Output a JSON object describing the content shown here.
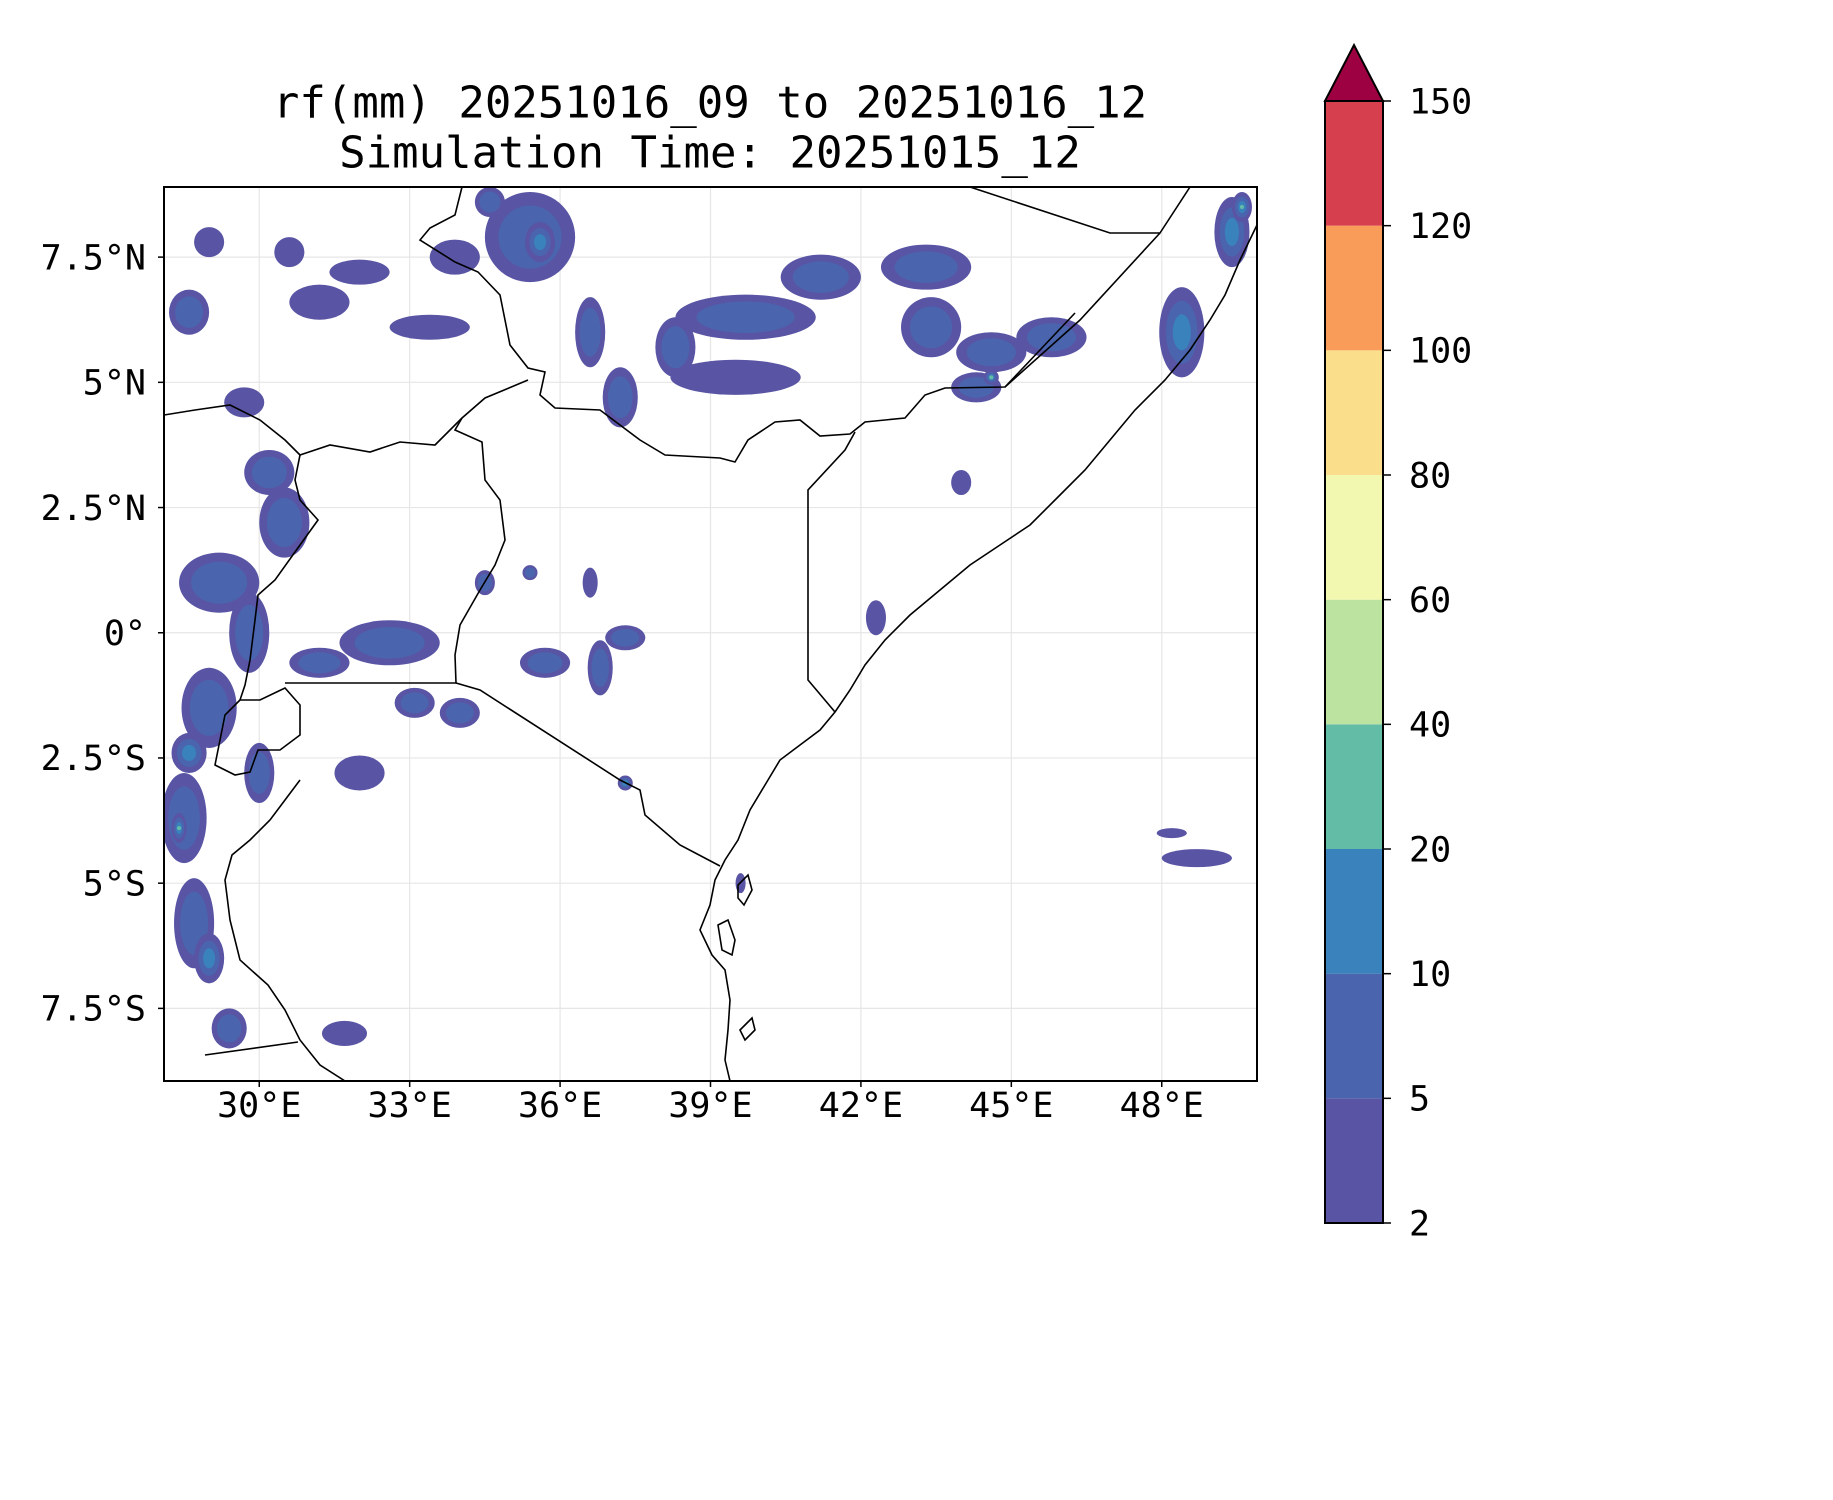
{
  "title": {
    "line1": "rf(mm) 20251016_09 to 20251016_12",
    "line2": "Simulation Time: 20251015_12"
  },
  "chart_data": {
    "type": "map",
    "variable": "rf(mm)",
    "period_start": "20251016_09",
    "period_end": "20251016_12",
    "simulation_time": "20251015_12",
    "extent": {
      "lon_min": 28.1,
      "lon_max": 49.9,
      "lat_min": -8.95,
      "lat_max": 8.9
    },
    "lon_ticks": [
      30,
      33,
      36,
      39,
      42,
      45,
      48
    ],
    "lon_tick_labels": [
      "30°E",
      "33°E",
      "36°E",
      "39°E",
      "42°E",
      "45°E",
      "48°E"
    ],
    "lat_ticks": [
      7.5,
      5,
      2.5,
      0,
      -2.5,
      -5,
      -7.5
    ],
    "lat_tick_labels": [
      "7.5°N",
      "5°N",
      "2.5°N",
      "0°",
      "2.5°S",
      "5°S",
      "7.5°S"
    ],
    "colorbar": {
      "levels": [
        2,
        5,
        10,
        20,
        40,
        60,
        80,
        100,
        120,
        150
      ],
      "labels": [
        "2",
        "5",
        "10",
        "20",
        "40",
        "60",
        "80",
        "100",
        "120",
        "150"
      ],
      "colors": [
        "#5954a4",
        "#4a65ae",
        "#3a82bc",
        "#63bca6",
        "#bce3a0",
        "#f2f8af",
        "#fbde8c",
        "#f99b59",
        "#d6404e"
      ],
      "extend_max_color": "#9e0142",
      "extend": "max"
    },
    "rain_cells": [
      {
        "lon": 28.6,
        "lat": 6.4,
        "rx": 0.4,
        "ry": 0.45,
        "level": 1
      },
      {
        "lon": 29.0,
        "lat": 7.8,
        "rx": 0.3,
        "ry": 0.3,
        "level": 0
      },
      {
        "lon": 29.7,
        "lat": 4.6,
        "rx": 0.4,
        "ry": 0.3,
        "level": 0
      },
      {
        "lon": 30.2,
        "lat": 3.2,
        "rx": 0.5,
        "ry": 0.45,
        "level": 1
      },
      {
        "lon": 30.5,
        "lat": 2.2,
        "rx": 0.5,
        "ry": 0.7,
        "level": 1
      },
      {
        "lon": 29.2,
        "lat": 1.0,
        "rx": 0.8,
        "ry": 0.6,
        "level": 1
      },
      {
        "lon": 29.8,
        "lat": 0.0,
        "rx": 0.4,
        "ry": 0.8,
        "level": 1
      },
      {
        "lon": 29.0,
        "lat": -1.5,
        "rx": 0.55,
        "ry": 0.8,
        "level": 1
      },
      {
        "lon": 28.6,
        "lat": -2.4,
        "rx": 0.35,
        "ry": 0.4,
        "level": 2
      },
      {
        "lon": 28.5,
        "lat": -3.7,
        "rx": 0.45,
        "ry": 0.9,
        "level": 1
      },
      {
        "lon": 28.4,
        "lat": -3.9,
        "rx": 0.15,
        "ry": 0.3,
        "level": 3
      },
      {
        "lon": 28.7,
        "lat": -5.8,
        "rx": 0.4,
        "ry": 0.9,
        "level": 1
      },
      {
        "lon": 29.0,
        "lat": -6.5,
        "rx": 0.3,
        "ry": 0.5,
        "level": 2
      },
      {
        "lon": 29.4,
        "lat": -7.9,
        "rx": 0.35,
        "ry": 0.4,
        "level": 1
      },
      {
        "lon": 30.0,
        "lat": -2.8,
        "rx": 0.3,
        "ry": 0.6,
        "level": 1
      },
      {
        "lon": 31.7,
        "lat": -8.0,
        "rx": 0.45,
        "ry": 0.25,
        "level": 0
      },
      {
        "lon": 31.2,
        "lat": 6.6,
        "rx": 0.6,
        "ry": 0.35,
        "level": 0
      },
      {
        "lon": 30.6,
        "lat": 7.6,
        "rx": 0.3,
        "ry": 0.3,
        "level": 0
      },
      {
        "lon": 32.0,
        "lat": 7.2,
        "rx": 0.6,
        "ry": 0.25,
        "level": 0
      },
      {
        "lon": 33.9,
        "lat": 7.5,
        "rx": 0.5,
        "ry": 0.35,
        "level": 0
      },
      {
        "lon": 33.4,
        "lat": 6.1,
        "rx": 0.8,
        "ry": 0.25,
        "level": 0
      },
      {
        "lon": 35.4,
        "lat": 7.9,
        "rx": 0.9,
        "ry": 0.9,
        "level": 1
      },
      {
        "lon": 35.6,
        "lat": 7.8,
        "rx": 0.3,
        "ry": 0.4,
        "level": 2
      },
      {
        "lon": 34.6,
        "lat": 8.6,
        "rx": 0.3,
        "ry": 0.3,
        "level": 1
      },
      {
        "lon": 36.6,
        "lat": 6.0,
        "rx": 0.3,
        "ry": 0.7,
        "level": 1
      },
      {
        "lon": 37.2,
        "lat": 4.7,
        "rx": 0.35,
        "ry": 0.6,
        "level": 1
      },
      {
        "lon": 38.3,
        "lat": 5.7,
        "rx": 0.4,
        "ry": 0.6,
        "level": 1
      },
      {
        "lon": 39.7,
        "lat": 6.3,
        "rx": 1.4,
        "ry": 0.45,
        "level": 1
      },
      {
        "lon": 41.2,
        "lat": 7.1,
        "rx": 0.8,
        "ry": 0.45,
        "level": 1
      },
      {
        "lon": 39.5,
        "lat": 5.1,
        "rx": 1.3,
        "ry": 0.35,
        "level": 0
      },
      {
        "lon": 43.3,
        "lat": 7.3,
        "rx": 0.9,
        "ry": 0.45,
        "level": 1
      },
      {
        "lon": 43.4,
        "lat": 6.1,
        "rx": 0.6,
        "ry": 0.6,
        "level": 1
      },
      {
        "lon": 44.6,
        "lat": 5.6,
        "rx": 0.7,
        "ry": 0.4,
        "level": 1
      },
      {
        "lon": 44.3,
        "lat": 4.9,
        "rx": 0.5,
        "ry": 0.3,
        "level": 1
      },
      {
        "lon": 44.6,
        "lat": 5.1,
        "rx": 0.15,
        "ry": 0.15,
        "level": 3
      },
      {
        "lon": 45.8,
        "lat": 5.9,
        "rx": 0.7,
        "ry": 0.4,
        "level": 1
      },
      {
        "lon": 48.4,
        "lat": 6.0,
        "rx": 0.45,
        "ry": 0.9,
        "level": 2
      },
      {
        "lon": 49.4,
        "lat": 8.0,
        "rx": 0.35,
        "ry": 0.7,
        "level": 2
      },
      {
        "lon": 49.6,
        "lat": 8.5,
        "rx": 0.2,
        "ry": 0.3,
        "level": 3
      },
      {
        "lon": 44.0,
        "lat": 3.0,
        "rx": 0.2,
        "ry": 0.25,
        "level": 0
      },
      {
        "lon": 42.3,
        "lat": 0.3,
        "rx": 0.2,
        "ry": 0.35,
        "level": 0
      },
      {
        "lon": 34.5,
        "lat": 1.0,
        "rx": 0.2,
        "ry": 0.25,
        "level": 1
      },
      {
        "lon": 35.4,
        "lat": 1.2,
        "rx": 0.15,
        "ry": 0.15,
        "level": 1
      },
      {
        "lon": 36.6,
        "lat": 1.0,
        "rx": 0.15,
        "ry": 0.3,
        "level": 0
      },
      {
        "lon": 35.7,
        "lat": -0.6,
        "rx": 0.5,
        "ry": 0.3,
        "level": 1
      },
      {
        "lon": 36.8,
        "lat": -0.7,
        "rx": 0.25,
        "ry": 0.55,
        "level": 1
      },
      {
        "lon": 37.3,
        "lat": -0.1,
        "rx": 0.4,
        "ry": 0.25,
        "level": 1
      },
      {
        "lon": 32.6,
        "lat": -0.2,
        "rx": 1.0,
        "ry": 0.45,
        "level": 1
      },
      {
        "lon": 33.1,
        "lat": -1.4,
        "rx": 0.4,
        "ry": 0.3,
        "level": 1
      },
      {
        "lon": 34.0,
        "lat": -1.6,
        "rx": 0.4,
        "ry": 0.3,
        "level": 1
      },
      {
        "lon": 31.2,
        "lat": -0.6,
        "rx": 0.6,
        "ry": 0.3,
        "level": 1
      },
      {
        "lon": 32.0,
        "lat": -2.8,
        "rx": 0.5,
        "ry": 0.35,
        "level": 0
      },
      {
        "lon": 37.3,
        "lat": -3.0,
        "rx": 0.15,
        "ry": 0.15,
        "level": 2
      },
      {
        "lon": 39.6,
        "lat": -5.0,
        "rx": 0.1,
        "ry": 0.2,
        "level": 0
      },
      {
        "lon": 48.7,
        "lat": -4.5,
        "rx": 0.7,
        "ry": 0.18,
        "level": 0
      },
      {
        "lon": 48.2,
        "lat": -4.0,
        "rx": 0.3,
        "ry": 0.1,
        "level": 0
      }
    ]
  }
}
